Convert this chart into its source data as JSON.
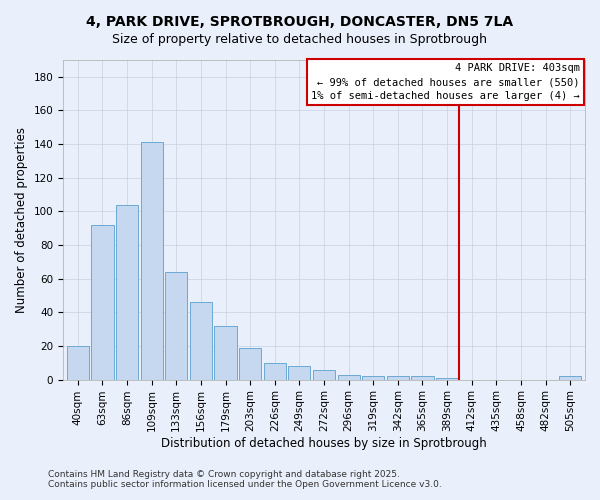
{
  "title_line1": "4, PARK DRIVE, SPROTBROUGH, DONCASTER, DN5 7LA",
  "title_line2": "Size of property relative to detached houses in Sprotbrough",
  "xlabel": "Distribution of detached houses by size in Sprotbrough",
  "ylabel": "Number of detached properties",
  "bar_labels": [
    "40sqm",
    "63sqm",
    "86sqm",
    "109sqm",
    "133sqm",
    "156sqm",
    "179sqm",
    "203sqm",
    "226sqm",
    "249sqm",
    "272sqm",
    "296sqm",
    "319sqm",
    "342sqm",
    "365sqm",
    "389sqm",
    "412sqm",
    "435sqm",
    "458sqm",
    "482sqm",
    "505sqm"
  ],
  "bar_values": [
    20,
    92,
    104,
    141,
    64,
    46,
    32,
    19,
    10,
    8,
    6,
    3,
    2,
    2,
    2,
    1,
    0,
    0,
    0,
    0,
    2
  ],
  "bar_color": "#c5d8f0",
  "bar_edge_color": "#6aaad4",
  "ylim": [
    0,
    190
  ],
  "yticks": [
    0,
    20,
    40,
    60,
    80,
    100,
    120,
    140,
    160,
    180
  ],
  "vline_color": "#cc0000",
  "vline_pos": 15.5,
  "annotation_title": "4 PARK DRIVE: 403sqm",
  "annotation_line2": "← 99% of detached houses are smaller (550)",
  "annotation_line3": "1% of semi-detached houses are larger (4) →",
  "annotation_box_facecolor": "#ffffff",
  "annotation_box_edgecolor": "#cc0000",
  "background_color": "#eaf0fb",
  "grid_color": "#c8d0e0",
  "title_fontsize": 10,
  "subtitle_fontsize": 9,
  "axis_label_fontsize": 8.5,
  "tick_fontsize": 7.5,
  "annotation_fontsize": 7.5,
  "footer_fontsize": 6.5,
  "footer_line1": "Contains HM Land Registry data © Crown copyright and database right 2025.",
  "footer_line2": "Contains public sector information licensed under the Open Government Licence v3.0."
}
